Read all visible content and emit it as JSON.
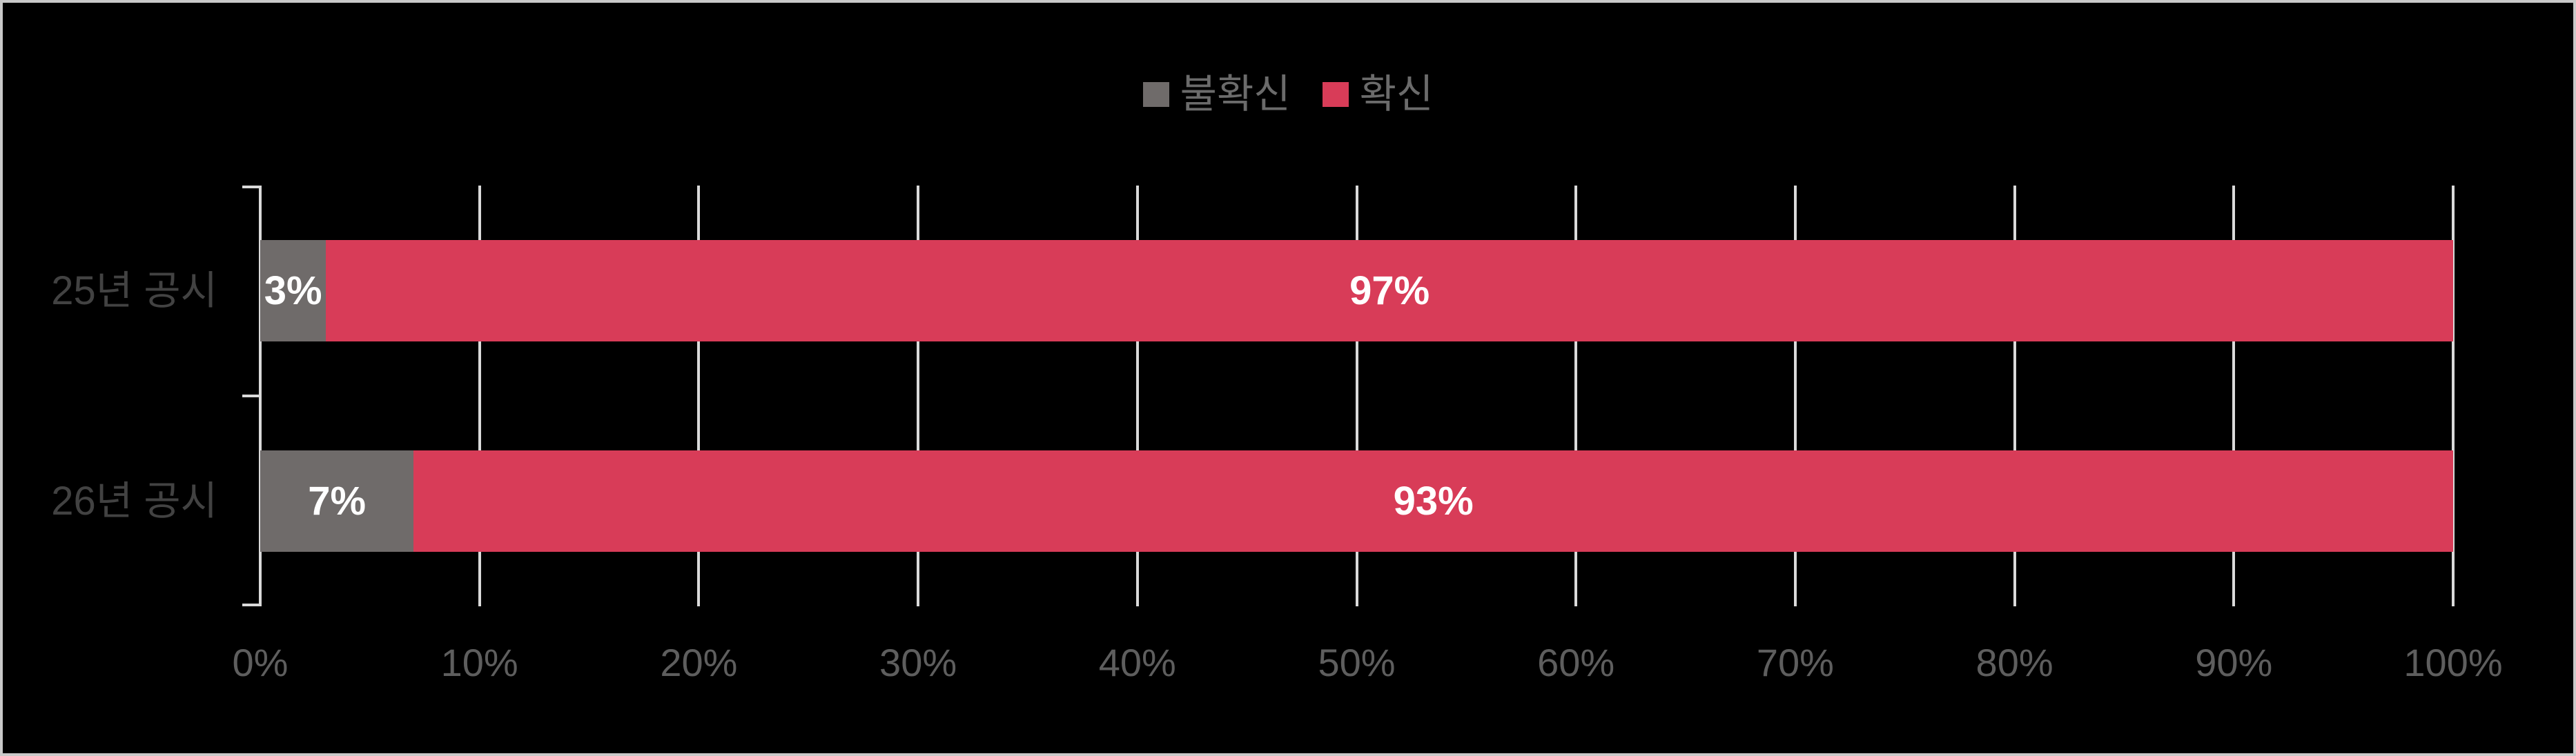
{
  "legend": {
    "items": [
      {
        "key": "uncertain",
        "label": "불확신",
        "color": "#6F6B6A"
      },
      {
        "key": "certain",
        "label": "확신",
        "color": "#D83C58"
      }
    ]
  },
  "chart_data": {
    "type": "bar",
    "orientation": "horizontal",
    "stacked": true,
    "unit": "%",
    "categories": [
      "25년 공시",
      "26년 공시"
    ],
    "series": [
      {
        "name": "불확신",
        "key": "uncertain",
        "color": "#6F6B6A",
        "values": [
          3,
          7
        ]
      },
      {
        "name": "확신",
        "key": "certain",
        "color": "#D83C58",
        "values": [
          97,
          93
        ]
      }
    ],
    "data_labels": [
      [
        "3%",
        "7%"
      ],
      [
        "97%",
        "93%"
      ]
    ],
    "xlim": [
      0,
      100
    ],
    "x_tick_step": 10,
    "x_tick_labels": [
      "0%",
      "10%",
      "20%",
      "30%",
      "40%",
      "50%",
      "60%",
      "70%",
      "80%",
      "90%",
      "100%"
    ],
    "legend_position": "top",
    "grid": true,
    "title": "",
    "xlabel": "",
    "ylabel": "",
    "colors": {
      "background": "#000000",
      "border": "#C9C9C9",
      "gridline": "#DADADA",
      "data_label": "#FFFFFF",
      "category_label": "#424242",
      "axis_tick_label": "#5E5E5E",
      "legend_label": "#6B6B6B"
    }
  }
}
